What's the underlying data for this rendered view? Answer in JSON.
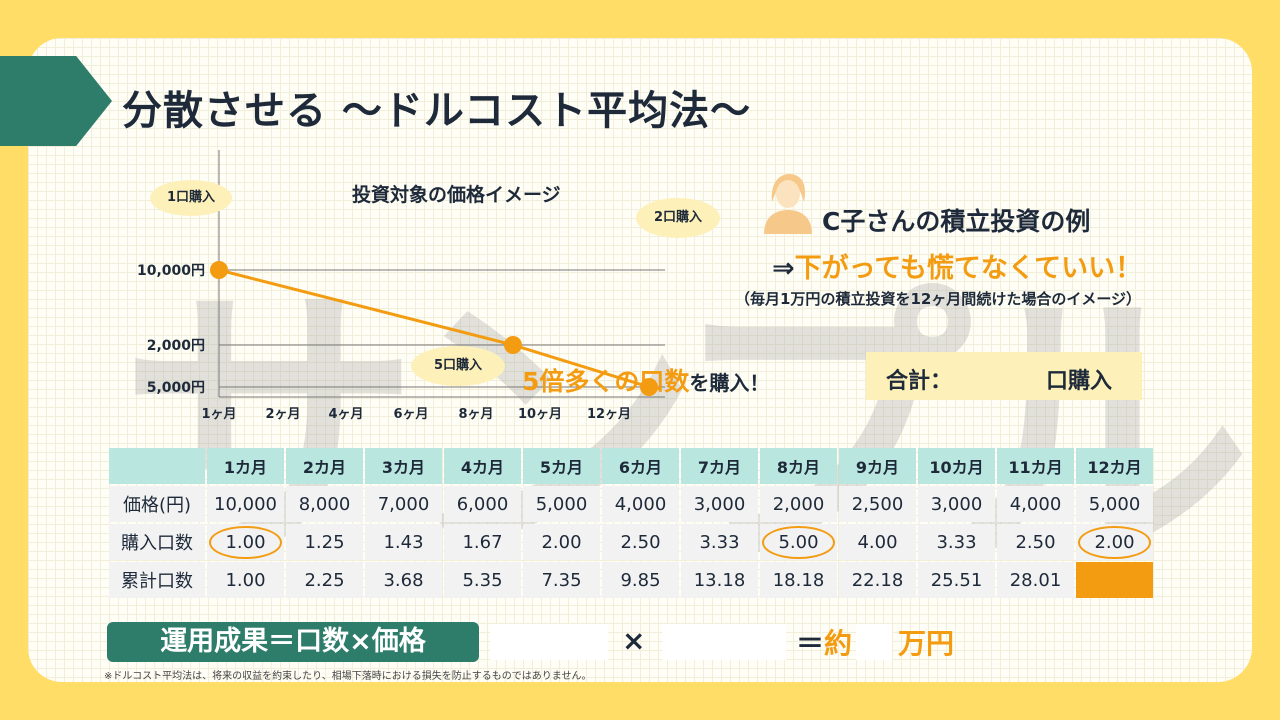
{
  "title": "分散させる ～ドルコスト平均法～",
  "watermark": "サンプル",
  "chart_data": {
    "type": "line",
    "title": "投資対象の価格イメージ",
    "x": [
      "1ヶ月",
      "2ヶ月",
      "4ヶ月",
      "6ヶ月",
      "8ヶ月",
      "10ヶ月",
      "12ヶ月"
    ],
    "y_ticks": [
      "10,000円",
      "5,000円",
      "2,000円"
    ],
    "points": [
      {
        "month": 1,
        "price": 10000
      },
      {
        "month": 8,
        "price": 2000
      },
      {
        "month": 12,
        "price": 5000
      }
    ],
    "annotations": [
      "1口購入",
      "5口購入",
      "2口購入"
    ],
    "color": "#f39c12"
  },
  "case": {
    "title": "C子さんの積立投資の例",
    "arrow": "⇒",
    "message": "下がっても慌てなくていい！",
    "note": "（毎月1万円の積立投資を12ヶ月間続けた場合のイメージ）",
    "five_hi": "5倍多くの口数",
    "five_rest": "を購入！",
    "total_label": "合計：",
    "total_unit": "口購入"
  },
  "table": {
    "headers": [
      "1カ月",
      "2カ月",
      "3カ月",
      "4カ月",
      "5カ月",
      "6カ月",
      "7カ月",
      "8カ月",
      "9カ月",
      "10カ月",
      "11カ月",
      "12カ月"
    ],
    "rows": [
      {
        "label": "価格(円)",
        "values": [
          "10,000",
          "8,000",
          "7,000",
          "6,000",
          "5,000",
          "4,000",
          "3,000",
          "2,000",
          "2,500",
          "3,000",
          "4,000",
          "5,000"
        ]
      },
      {
        "label": "購入口数",
        "values": [
          "1.00",
          "1.25",
          "1.43",
          "1.67",
          "2.00",
          "2.50",
          "3.33",
          "5.00",
          "4.00",
          "3.33",
          "2.50",
          "2.00"
        ]
      },
      {
        "label": "累計口数",
        "values": [
          "1.00",
          "2.25",
          "3.68",
          "5.35",
          "7.35",
          "9.85",
          "13.18",
          "18.18",
          "22.18",
          "25.51",
          "28.01",
          ""
        ]
      }
    ]
  },
  "formula": {
    "label": "運用成果＝口数×価格",
    "times": "×",
    "equals": "＝約",
    "unit": "万円"
  },
  "disclaimer": "※ドルコスト平均法は、将来の収益を約束したり、相場下落時における損失を防止するものではありません。",
  "colors": {
    "accent": "#f39c12",
    "teal": "#2e7d6b",
    "header_bg": "#b9e6df",
    "bubble": "#fdf0b8"
  }
}
